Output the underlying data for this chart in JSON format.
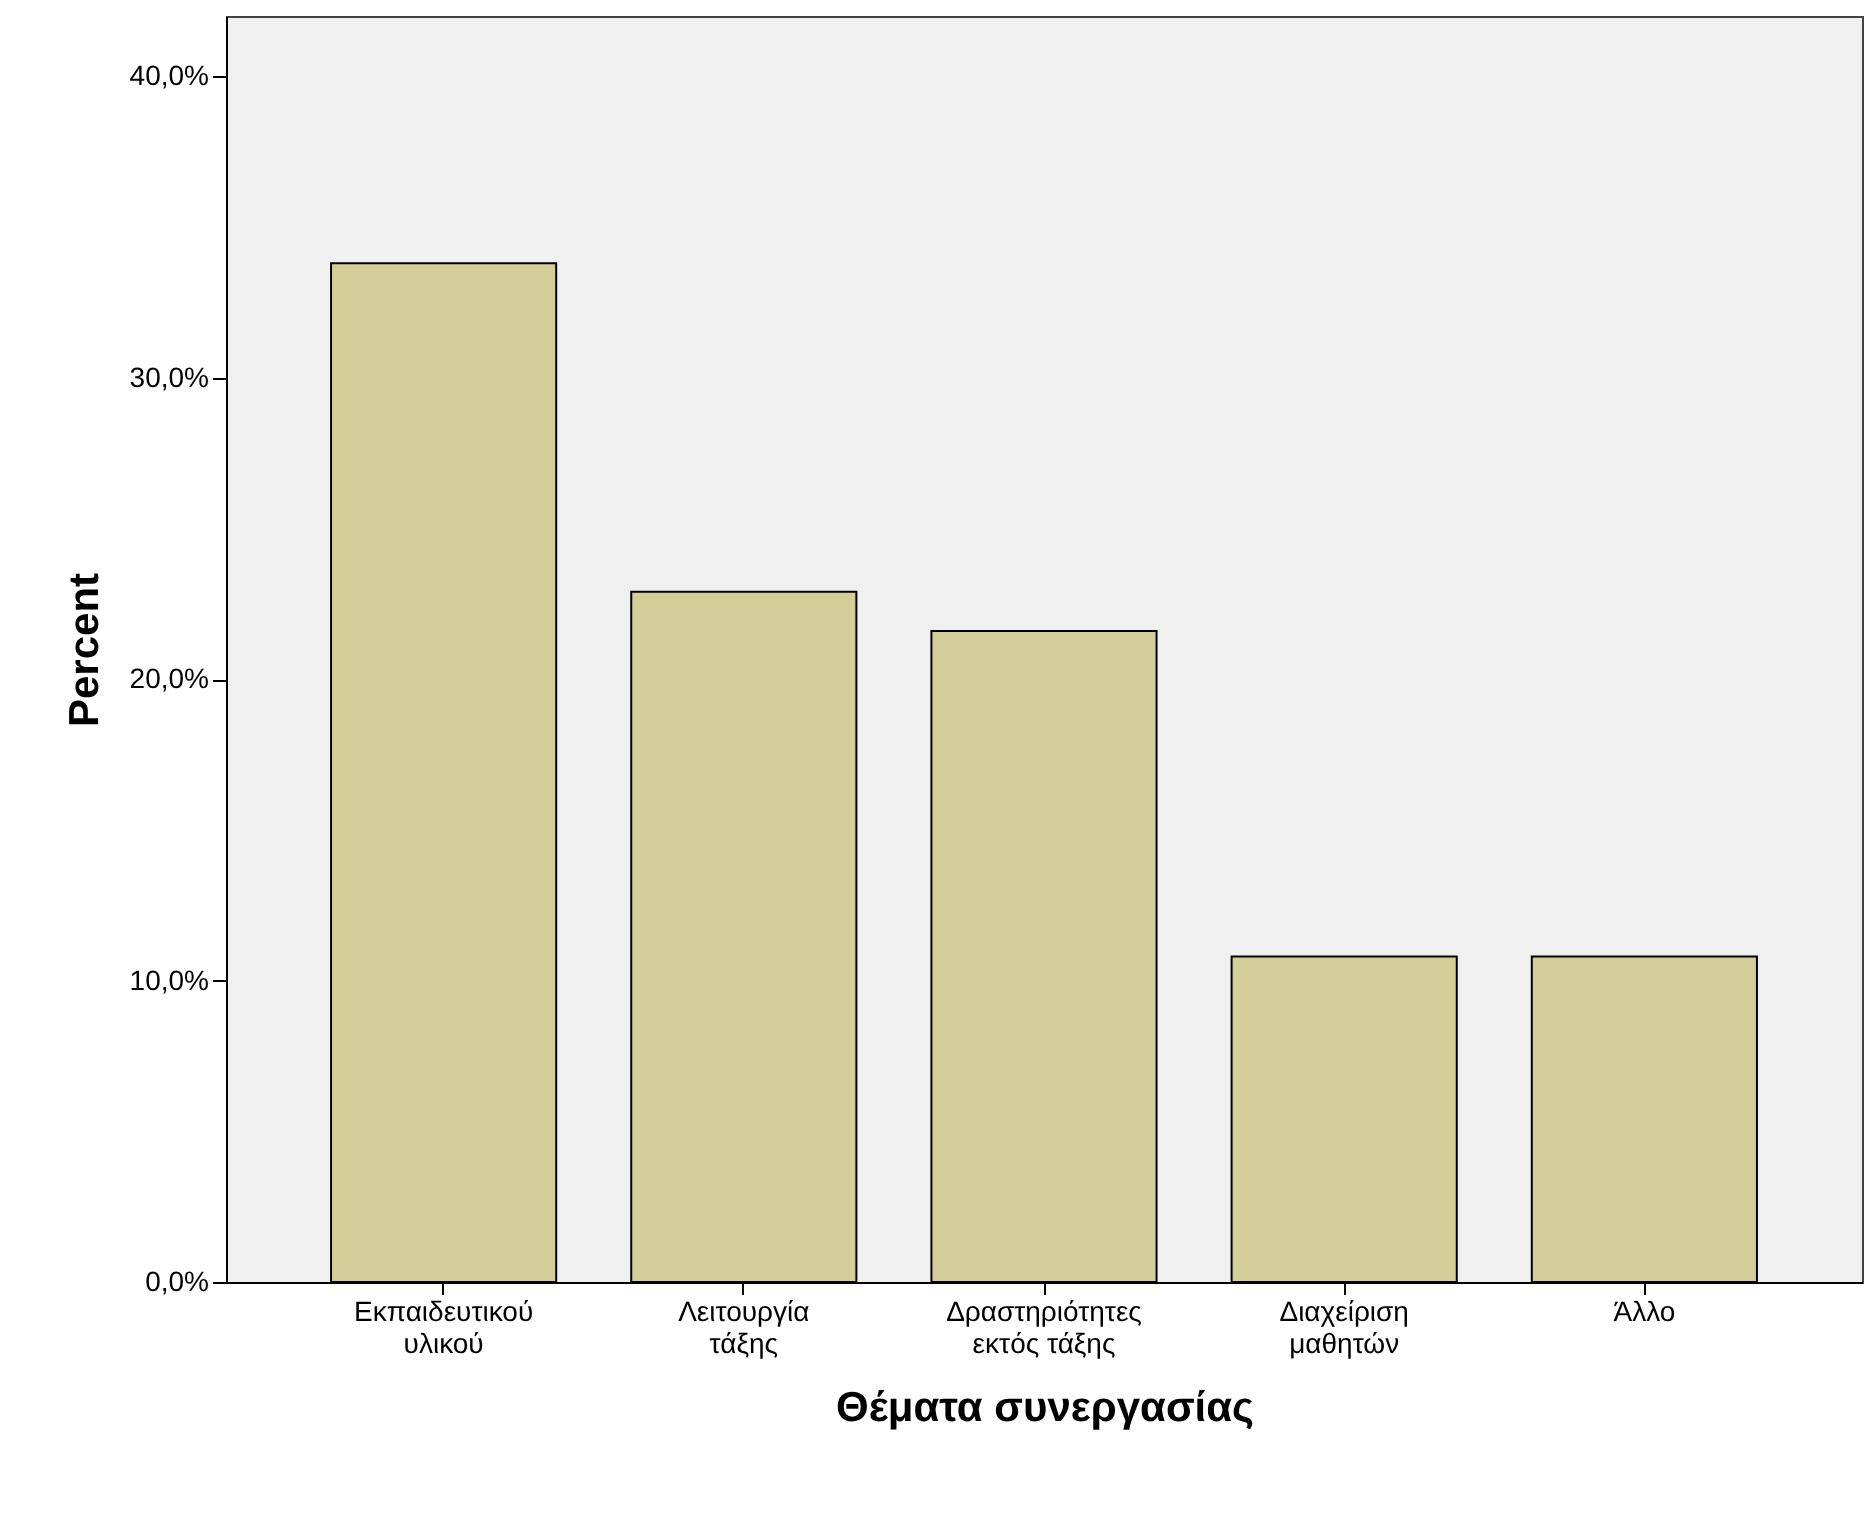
{
  "chart_data": {
    "type": "bar",
    "xlabel": "Θέματα συνεργασίας",
    "ylabel": "Percent",
    "categories": [
      "Εκπαιδευτικού υλικού",
      "Λειτουργία τάξης",
      "Δραστηριότητες εκτός τάξης",
      "Διαχείριση μαθητών",
      "Άλλο"
    ],
    "values": [
      33.8,
      22.9,
      21.6,
      10.8,
      10.8
    ],
    "color": "#d3ce97",
    "ylim": [
      0,
      42
    ],
    "yticks": [
      {
        "value": 0,
        "label": "0,0%"
      },
      {
        "value": 10,
        "label": "10,0%"
      },
      {
        "value": 20,
        "label": "20,0%"
      },
      {
        "value": 30,
        "label": "30,0%"
      },
      {
        "value": 40,
        "label": "40,0%"
      }
    ],
    "grid": false
  }
}
